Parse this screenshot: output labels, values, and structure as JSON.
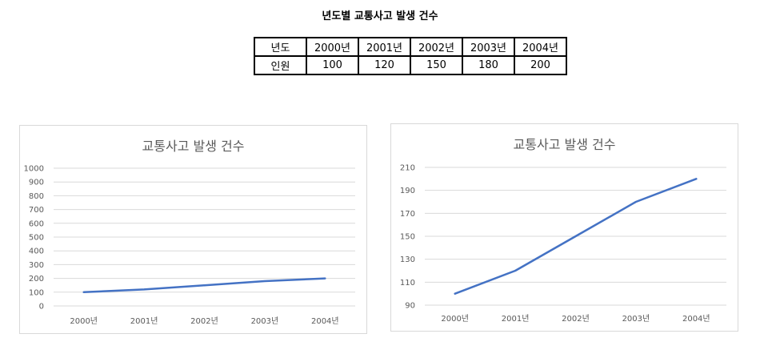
{
  "page_title": "년도별 교통사고 발생 건수",
  "table": {
    "row_headers": [
      "년도",
      "인원"
    ],
    "years": [
      "2000년",
      "2001년",
      "2002년",
      "2003년",
      "2004년"
    ],
    "values": [
      "100",
      "120",
      "150",
      "180",
      "200"
    ]
  },
  "colors": {
    "series": "#4472c4",
    "grid": "#d9d9d9",
    "text": "#595959"
  },
  "chart_data": [
    {
      "type": "line",
      "title": "교통사고 발생 건수",
      "categories": [
        "2000년",
        "2001년",
        "2002년",
        "2003년",
        "2004년"
      ],
      "values": [
        100,
        120,
        150,
        180,
        200
      ],
      "ylim": [
        0,
        1000
      ],
      "yticks": [
        "0",
        "100",
        "200",
        "300",
        "400",
        "500",
        "600",
        "700",
        "800",
        "900",
        "1000"
      ],
      "grid": true,
      "xlabel": "",
      "ylabel": ""
    },
    {
      "type": "line",
      "title": "교통사고 발생 건수",
      "categories": [
        "2000년",
        "2001년",
        "2002년",
        "2003년",
        "2004년"
      ],
      "values": [
        100,
        120,
        150,
        180,
        200
      ],
      "ylim": [
        90,
        210
      ],
      "yticks": [
        "90",
        "110",
        "130",
        "150",
        "170",
        "190",
        "210"
      ],
      "grid": true,
      "xlabel": "",
      "ylabel": ""
    }
  ]
}
